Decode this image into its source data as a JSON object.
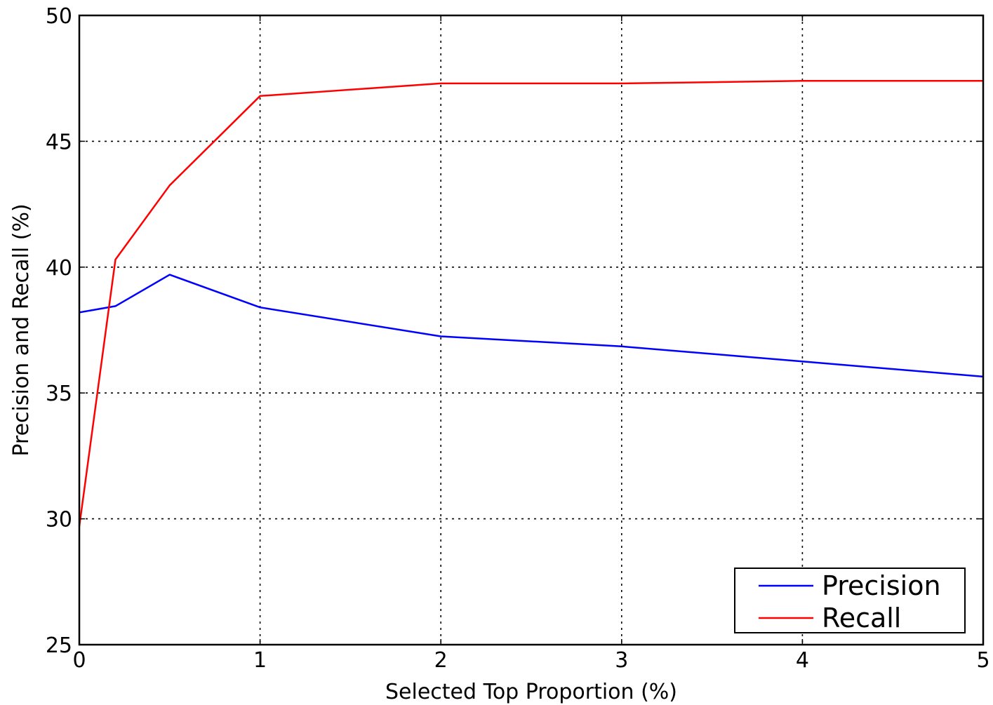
{
  "chart_data": {
    "type": "line",
    "title": "",
    "xlabel": "Selected Top Proportion (%)",
    "ylabel": "Precision and Recall (%)",
    "xlim": [
      0,
      5
    ],
    "ylim": [
      25,
      50
    ],
    "xticks": [
      0,
      1,
      2,
      3,
      4,
      5
    ],
    "yticks": [
      25,
      30,
      35,
      40,
      45,
      50
    ],
    "grid": true,
    "legend_position": "lower-right",
    "series": [
      {
        "name": "Precision",
        "color": "#0000ff",
        "x": [
          0,
          0.2,
          0.5,
          1,
          2,
          3,
          4,
          5
        ],
        "y": [
          38.2,
          38.45,
          39.7,
          38.4,
          37.25,
          36.85,
          36.25,
          35.65
        ]
      },
      {
        "name": "Recall",
        "color": "#ff0000",
        "x": [
          0,
          0.2,
          0.5,
          1,
          2,
          3,
          4,
          5
        ],
        "y": [
          29.7,
          40.3,
          43.25,
          46.8,
          47.3,
          47.3,
          47.4,
          47.4
        ]
      }
    ]
  }
}
